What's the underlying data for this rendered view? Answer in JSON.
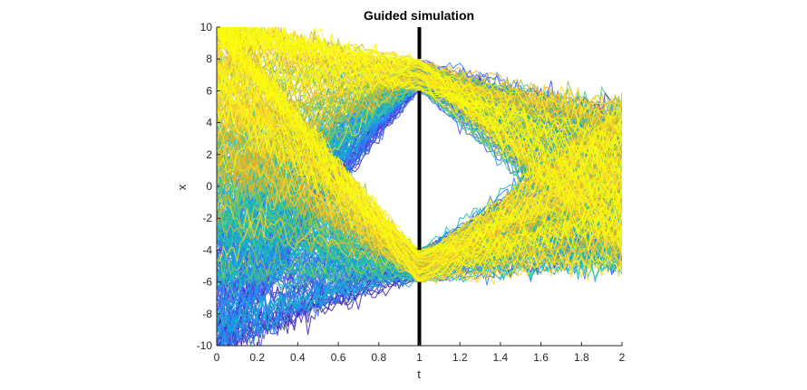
{
  "chart_data": {
    "type": "line",
    "title": "Guided simulation",
    "xlabel": "t",
    "ylabel": "x",
    "xlim": [
      0,
      2
    ],
    "ylim": [
      -10,
      10
    ],
    "x_ticks": [
      "0",
      "0.2",
      "0.4",
      "0.6",
      "0.8",
      "1",
      "1.2",
      "1.4",
      "1.6",
      "1.8",
      "2"
    ],
    "y_ticks": [
      "10",
      "8",
      "6",
      "4",
      "2",
      "0",
      "-2",
      "-4",
      "-6",
      "-8",
      "-10"
    ],
    "grid": false,
    "legend": "none",
    "colormap": [
      "#3e26a8",
      "#4650f1",
      "#2f7ef8",
      "#1aa1e0",
      "#13bbb9",
      "#47c785",
      "#9ec540",
      "#e6b52c",
      "#fbd72e",
      "#f9fb0e"
    ],
    "barrier": {
      "t": 1,
      "color": "#000000",
      "blocked_segments": [
        [
          -10,
          -6
        ],
        [
          -4,
          6
        ],
        [
          8,
          10
        ]
      ],
      "openings": [
        [
          -6,
          -4
        ],
        [
          6,
          8
        ]
      ]
    },
    "series_description_groups": [
      {
        "name": "",
        "t_range": [
          0,
          1
        ],
        "start_x_range": [
          -10,
          10
        ],
        "end_x_range": [
          -6,
          8
        ]
      },
      {
        "name": "",
        "t_range": [
          1,
          2
        ],
        "start_x_range": [
          -6,
          8
        ],
        "end_x_range": [
          -6.5,
          6
        ]
      }
    ]
  }
}
